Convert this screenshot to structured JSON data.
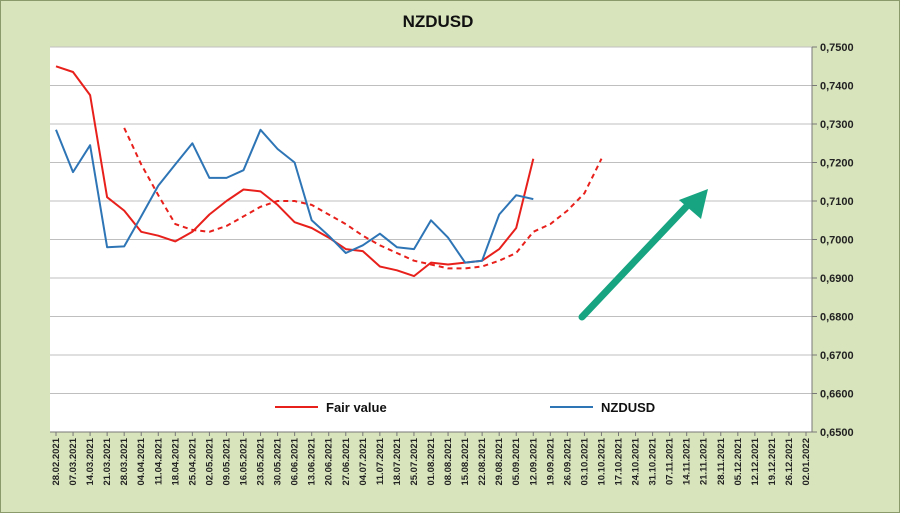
{
  "colors": {
    "background": "#d8e4bc",
    "plot_area": "#ffffff",
    "fair_value": "#e8201c",
    "nzdusd": "#2e75b6",
    "arrow": "#17a481",
    "grid": "#bfbfbf"
  },
  "chart_data": {
    "type": "line",
    "title": "NZDUSD",
    "xlabel": "",
    "ylabel": "",
    "ylim": [
      0.65,
      0.75
    ],
    "y_axis_side": "right",
    "grid": "horizontal",
    "legend_placement": "bottom",
    "x": [
      "28.02.2021",
      "07.03.2021",
      "14.03.2021",
      "21.03.2021",
      "28.03.2021",
      "04.04.2021",
      "11.04.2021",
      "18.04.2021",
      "25.04.2021",
      "02.05.2021",
      "09.05.2021",
      "16.05.2021",
      "23.05.2021",
      "30.05.2021",
      "06.06.2021",
      "13.06.2021",
      "20.06.2021",
      "27.06.2021",
      "04.07.2021",
      "11.07.2021",
      "18.07.2021",
      "25.07.2021",
      "01.08.2021",
      "08.08.2021",
      "15.08.2021",
      "22.08.2021",
      "29.08.2021",
      "05.09.2021",
      "12.09.2021",
      "19.09.2021",
      "26.09.2021",
      "03.10.2021",
      "10.10.2021",
      "17.10.2021",
      "24.10.2021",
      "31.10.2021",
      "07.11.2021",
      "14.11.2021",
      "21.11.2021",
      "28.11.2021",
      "05.12.2021",
      "12.12.2021",
      "19.12.2021",
      "26.12.2021",
      "02.01.2022"
    ],
    "y_ticks": [
      "0,7500",
      "0,7400",
      "0,7300",
      "0,7200",
      "0,7100",
      "0,7000",
      "0,6900",
      "0,6800",
      "0,6700",
      "0,6600",
      "0,6500"
    ],
    "series": [
      {
        "name": "Fair value",
        "style": "solid",
        "color": "#e8201c",
        "values": [
          0.745,
          0.7435,
          0.7375,
          0.711,
          0.7075,
          0.702,
          0.701,
          0.6995,
          0.702,
          0.7065,
          0.71,
          0.713,
          0.7125,
          0.709,
          0.7045,
          0.703,
          0.7005,
          0.6975,
          0.697,
          0.693,
          0.692,
          0.6905,
          0.694,
          0.6935,
          0.694,
          0.6945,
          0.6975,
          0.703,
          0.721,
          null,
          null,
          null,
          null,
          null,
          null,
          null,
          null,
          null,
          null,
          null,
          null,
          null,
          null,
          null,
          null
        ]
      },
      {
        "name": "",
        "style": "dashed",
        "color": "#e8201c",
        "values": [
          null,
          null,
          null,
          null,
          0.729,
          0.7195,
          0.7115,
          0.704,
          0.7025,
          0.702,
          0.7035,
          0.706,
          0.7085,
          0.71,
          0.71,
          0.709,
          0.7065,
          0.704,
          0.701,
          0.6985,
          0.6965,
          0.6945,
          0.6935,
          0.6925,
          0.6925,
          0.693,
          0.6945,
          0.6965,
          0.702,
          0.704,
          0.7075,
          0.712,
          0.721,
          null,
          null,
          null,
          null,
          null,
          null,
          null,
          null,
          null,
          null,
          null,
          null
        ]
      },
      {
        "name": "NZDUSD",
        "style": "solid",
        "color": "#2e75b6",
        "values": [
          0.7285,
          0.7175,
          0.7245,
          0.698,
          0.6982,
          0.706,
          0.714,
          0.7195,
          0.725,
          0.716,
          0.716,
          0.718,
          0.7285,
          0.7235,
          0.72,
          0.705,
          0.701,
          0.6965,
          0.6985,
          0.7015,
          0.698,
          0.6975,
          0.705,
          0.7005,
          0.694,
          0.6945,
          0.7065,
          0.7115,
          0.7105,
          null,
          null,
          null,
          null,
          null,
          null,
          null,
          null,
          null,
          null,
          null,
          null,
          null,
          null,
          null,
          null
        ]
      }
    ],
    "annotations": [
      {
        "type": "arrow",
        "direction": "up-right",
        "color": "#17a481"
      }
    ]
  },
  "legend": {
    "fair_value": "Fair value",
    "nzdusd": "NZDUSD"
  }
}
